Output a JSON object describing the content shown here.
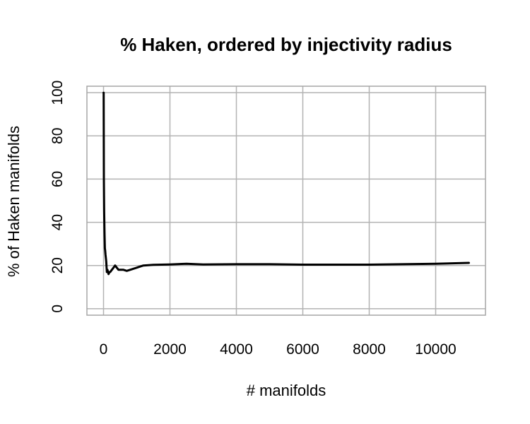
{
  "chart_data": {
    "type": "line",
    "title": "% Haken, ordered by injectivity radius",
    "xlabel": "# manifolds",
    "ylabel": "% of Haken manifolds",
    "xlim": [
      -500,
      11500
    ],
    "ylim": [
      -3,
      103
    ],
    "x_ticks": [
      0,
      2000,
      4000,
      6000,
      8000,
      10000
    ],
    "y_ticks": [
      0,
      20,
      40,
      60,
      80,
      100
    ],
    "grid": true,
    "series": [
      {
        "color": "#000000",
        "x": [
          1,
          5,
          10,
          20,
          30,
          40,
          50,
          60,
          80,
          100,
          120,
          150,
          180,
          200,
          250,
          300,
          350,
          400,
          450,
          500,
          600,
          700,
          800,
          900,
          1000,
          1100,
          1200,
          1500,
          2000,
          2500,
          3000,
          4000,
          5000,
          6000,
          7000,
          8000,
          9000,
          10000,
          10500,
          11000
        ],
        "y": [
          100,
          100,
          60,
          45,
          35,
          28,
          27,
          25,
          22,
          17,
          18,
          16,
          17,
          17,
          18,
          19,
          20,
          19,
          18,
          18,
          18,
          17.5,
          18,
          18.5,
          19,
          19.5,
          20,
          20.3,
          20.5,
          20.8,
          20.5,
          20.6,
          20.6,
          20.4,
          20.4,
          20.4,
          20.6,
          20.8,
          21,
          21.2
        ]
      }
    ]
  }
}
